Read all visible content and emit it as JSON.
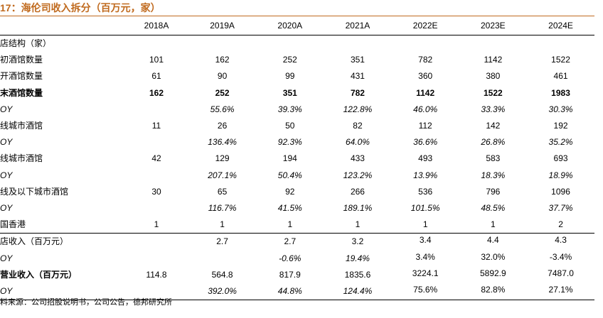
{
  "title": "17：海伦司收入拆分（百万元，家）",
  "headers": [
    "",
    "2018A",
    "2019A",
    "2020A",
    "2021A",
    "2022E",
    "2023E",
    "2024E"
  ],
  "rows": [
    {
      "label": "店结构（家）",
      "values": [
        "",
        "",
        "",
        "",
        "",
        "",
        ""
      ],
      "style": "plain"
    },
    {
      "label": "初酒馆数量",
      "values": [
        "101",
        "162",
        "252",
        "351",
        "782",
        "1142",
        "1522"
      ],
      "style": "plain"
    },
    {
      "label": "开酒馆数量",
      "values": [
        "61",
        "90",
        "99",
        "431",
        "360",
        "380",
        "461"
      ],
      "style": "plain"
    },
    {
      "label": "末酒馆数量",
      "values": [
        "162",
        "252",
        "351",
        "782",
        "1142",
        "1522",
        "1983"
      ],
      "style": "bold"
    },
    {
      "label": "OY",
      "values": [
        "",
        "55.6%",
        "39.3%",
        "122.8%",
        "46.0%",
        "33.3%",
        "30.3%"
      ],
      "style": "yoy"
    },
    {
      "label": "线城市酒馆",
      "values": [
        "11",
        "26",
        "50",
        "82",
        "112",
        "142",
        "192"
      ],
      "style": "plain"
    },
    {
      "label": "OY",
      "values": [
        "",
        "136.4%",
        "92.3%",
        "64.0%",
        "36.6%",
        "26.8%",
        "35.2%"
      ],
      "style": "yoy"
    },
    {
      "label": "线城市酒馆",
      "values": [
        "42",
        "129",
        "194",
        "433",
        "493",
        "583",
        "693"
      ],
      "style": "plain"
    },
    {
      "label": "OY",
      "values": [
        "",
        "207.1%",
        "50.4%",
        "123.2%",
        "13.9%",
        "18.3%",
        "18.9%"
      ],
      "style": "yoy"
    },
    {
      "label": "线及以下城市酒馆",
      "values": [
        "30",
        "65",
        "92",
        "266",
        "536",
        "796",
        "1096"
      ],
      "style": "plain"
    },
    {
      "label": "OY",
      "values": [
        "",
        "116.7%",
        "41.5%",
        "189.1%",
        "101.5%",
        "48.5%",
        "37.7%"
      ],
      "style": "yoy"
    },
    {
      "label": "国香港",
      "values": [
        "1",
        "1",
        "1",
        "1",
        "1",
        "1",
        "2"
      ],
      "style": "sep"
    },
    {
      "label": "店收入（百万元）",
      "values": [
        "",
        "2.7",
        "2.7",
        "3.2",
        "3.4",
        "4.4",
        "4.3"
      ],
      "style": "plain"
    },
    {
      "label": "OY",
      "values": [
        "",
        "",
        "-0.6%",
        "19.4%",
        "3.4%",
        "32.0%",
        "-3.4%"
      ],
      "style": "yoy-mixed"
    },
    {
      "label": "营业收入（百万元）",
      "values": [
        "114.8",
        "564.8",
        "817.9",
        "1835.6",
        "3224.1",
        "5892.9",
        "7487.0"
      ],
      "style": "bold-label"
    },
    {
      "label": "OY",
      "values": [
        "",
        "392.0%",
        "44.8%",
        "124.4%",
        "75.6%",
        "82.8%",
        "27.1%"
      ],
      "style": "yoy-mixed-last"
    }
  ],
  "source": "料来源：公司招股说明书，公司公告，德邦研究所"
}
